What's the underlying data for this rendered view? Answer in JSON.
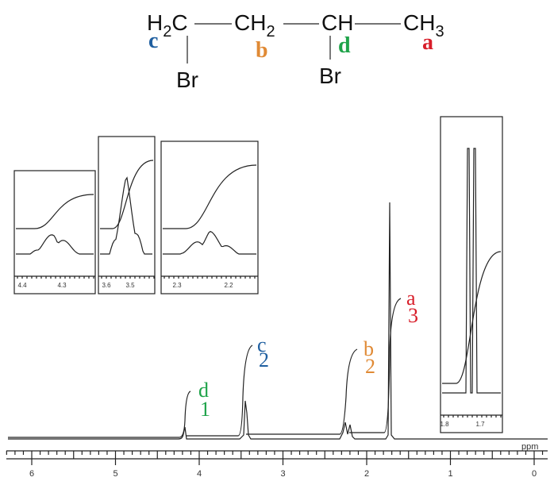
{
  "molecule": {
    "groups": [
      {
        "main": "H",
        "sub": "2",
        "tail": "C"
      },
      {
        "main": "CH",
        "sub": "2"
      },
      {
        "main": "CH"
      },
      {
        "main": "CH",
        "sub": "3"
      }
    ],
    "substituents": [
      "Br",
      "Br"
    ],
    "labels": [
      "c",
      "b",
      "d",
      "a"
    ]
  },
  "peaks": [
    {
      "label": "d",
      "protons": "1"
    },
    {
      "label": "c",
      "protons": "2"
    },
    {
      "label": "b",
      "protons": "2"
    },
    {
      "label": "a",
      "protons": "3"
    }
  ],
  "axis": {
    "unit": "ppm",
    "ticks": [
      "6",
      "5",
      "4",
      "3",
      "2",
      "1",
      "0"
    ]
  },
  "insets": [
    {
      "ticks": [
        "4.4",
        "4.3"
      ]
    },
    {
      "ticks": [
        "3.6",
        "3.5"
      ]
    },
    {
      "ticks": [
        "2.3",
        "2.2"
      ]
    },
    {
      "ticks": [
        "1.8",
        "1.7"
      ]
    }
  ]
}
